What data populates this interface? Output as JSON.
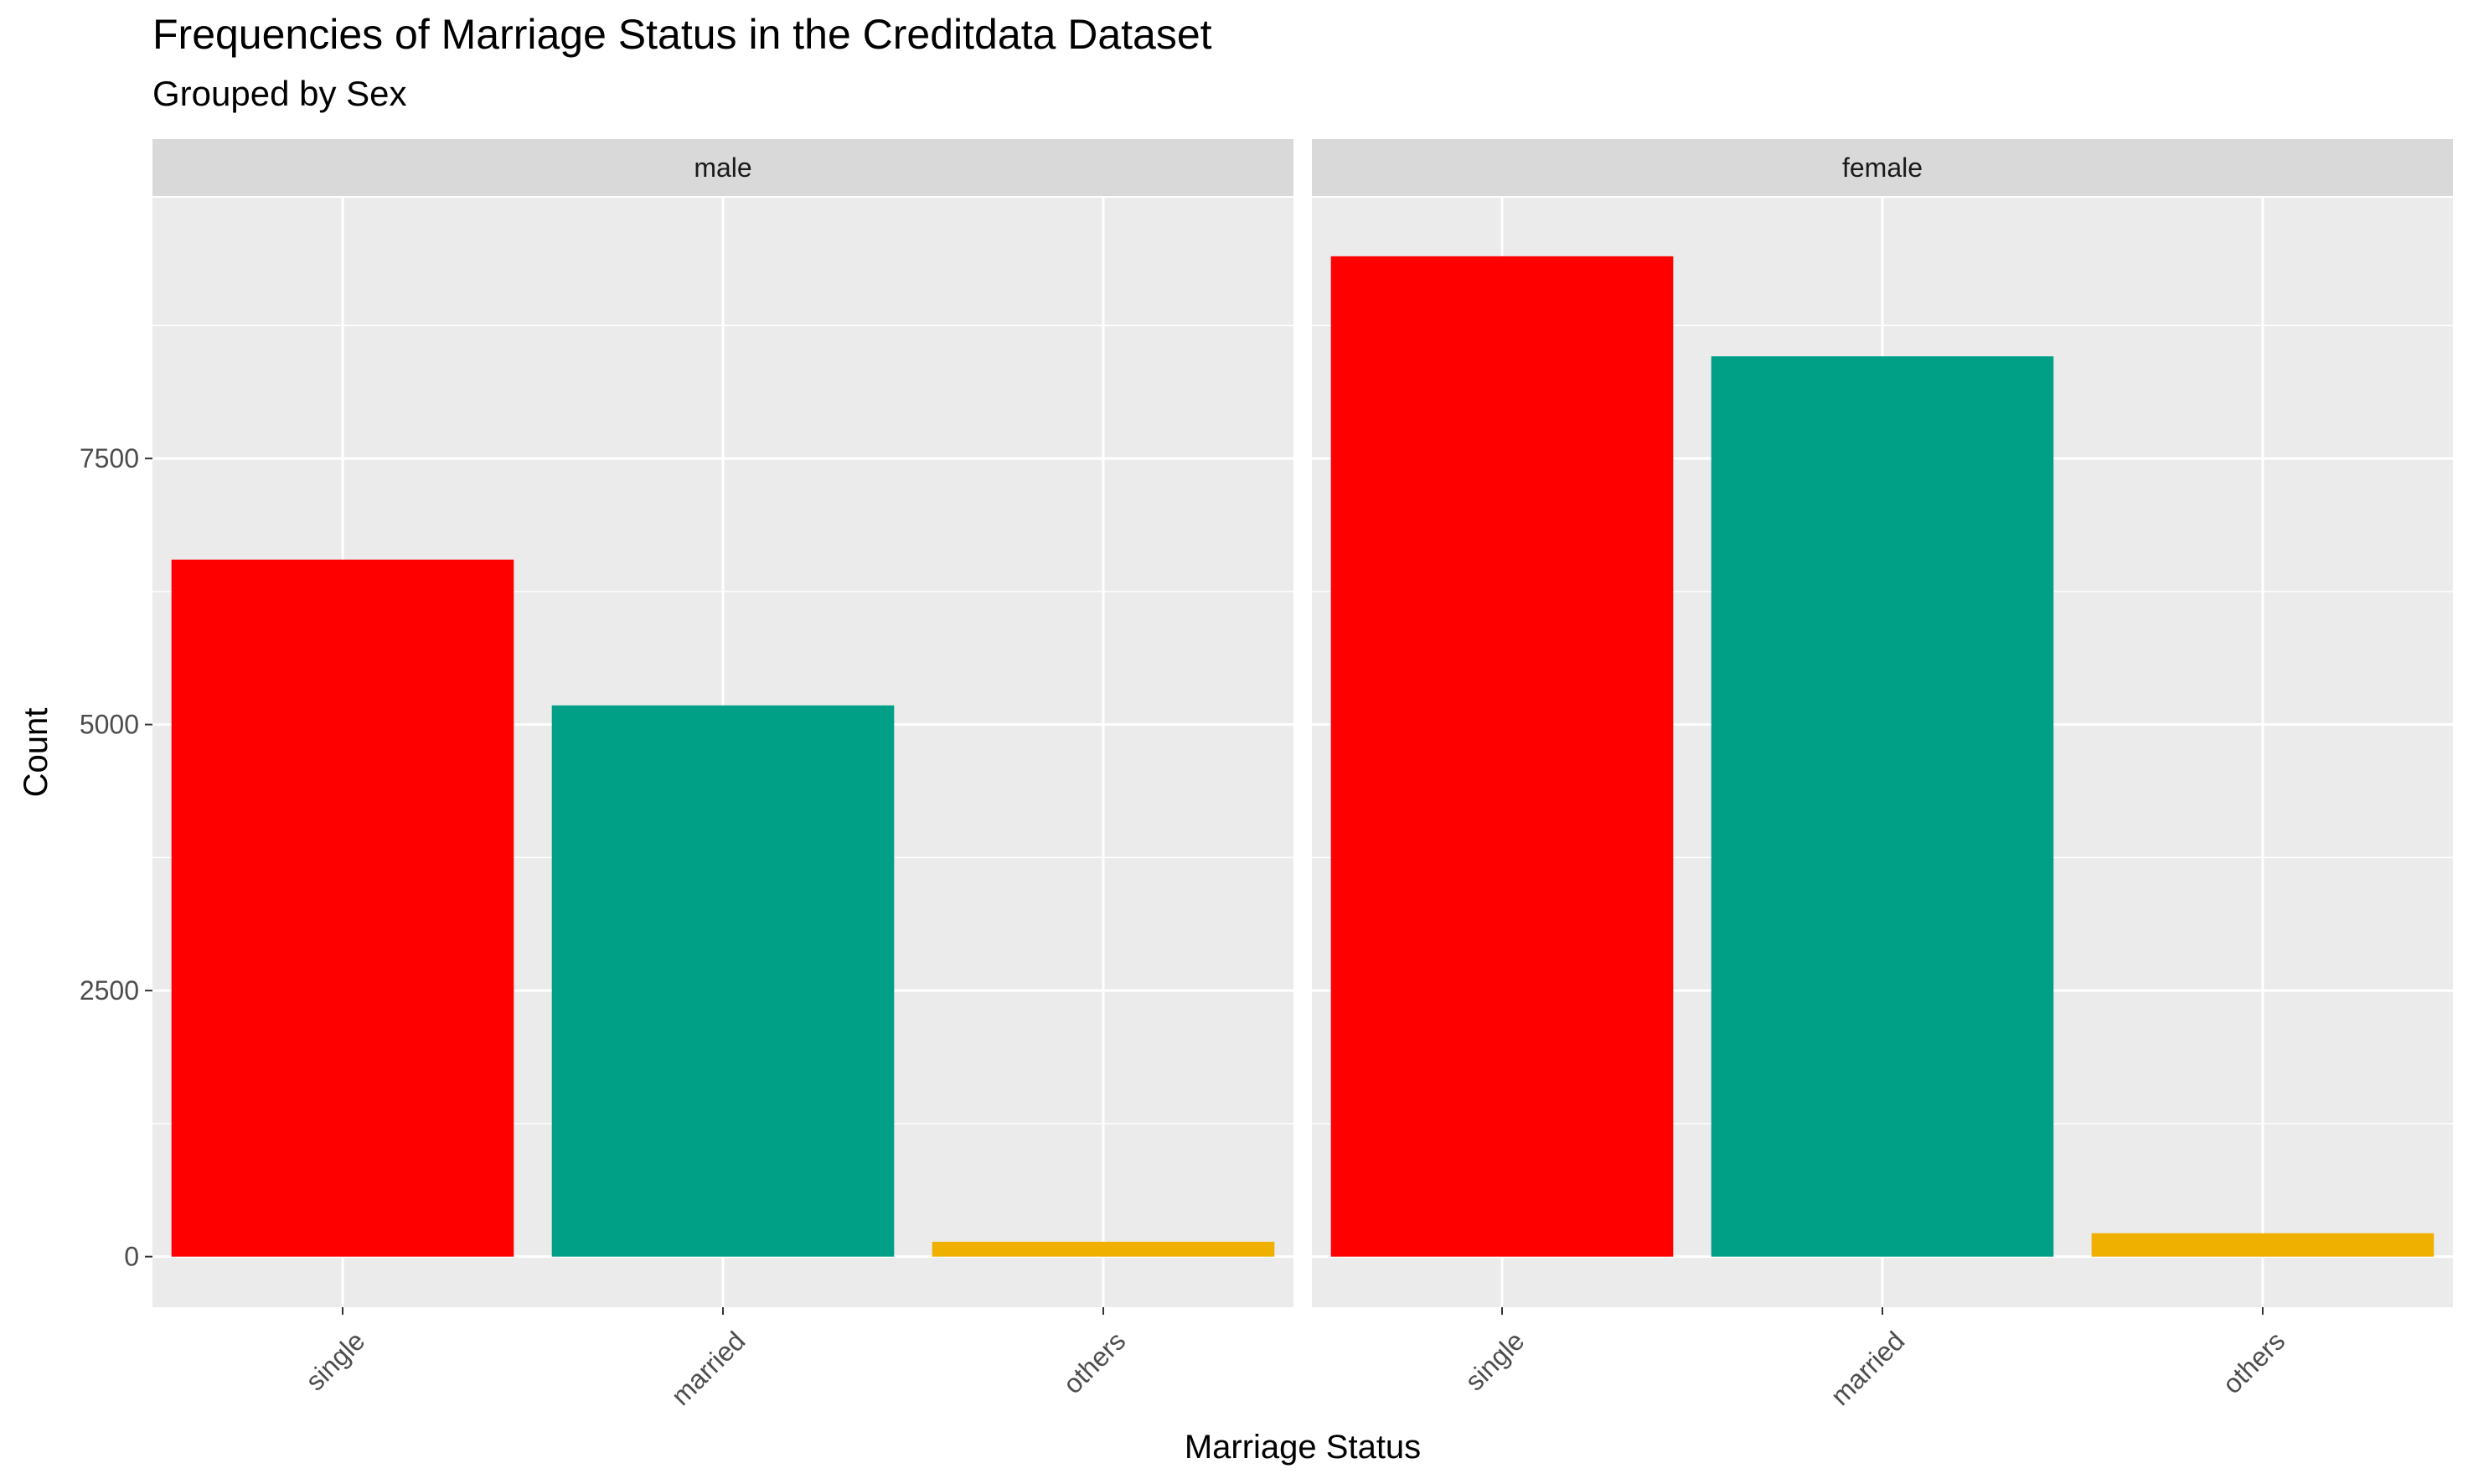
{
  "chart_data": {
    "type": "bar",
    "title": "Frequencies of Marriage Status in the Creditdata Dataset",
    "subtitle": "Grouped by Sex",
    "xlabel": "Marriage Status",
    "ylabel": "Count",
    "categories": [
      "single",
      "married",
      "others"
    ],
    "category_colors": {
      "single": "#ff0000",
      "married": "#00a087",
      "others": "#f0b000"
    },
    "panels": [
      {
        "name": "male",
        "values": [
          6550,
          5180,
          140
        ]
      },
      {
        "name": "female",
        "values": [
          9400,
          8460,
          220
        ]
      }
    ],
    "ylim": [
      -475,
      9950
    ],
    "yticks": [
      0,
      2500,
      5000,
      7500
    ],
    "ytick_labels": [
      "0",
      "2500",
      "5000",
      "7500"
    ],
    "grid": true,
    "legend": "none"
  }
}
